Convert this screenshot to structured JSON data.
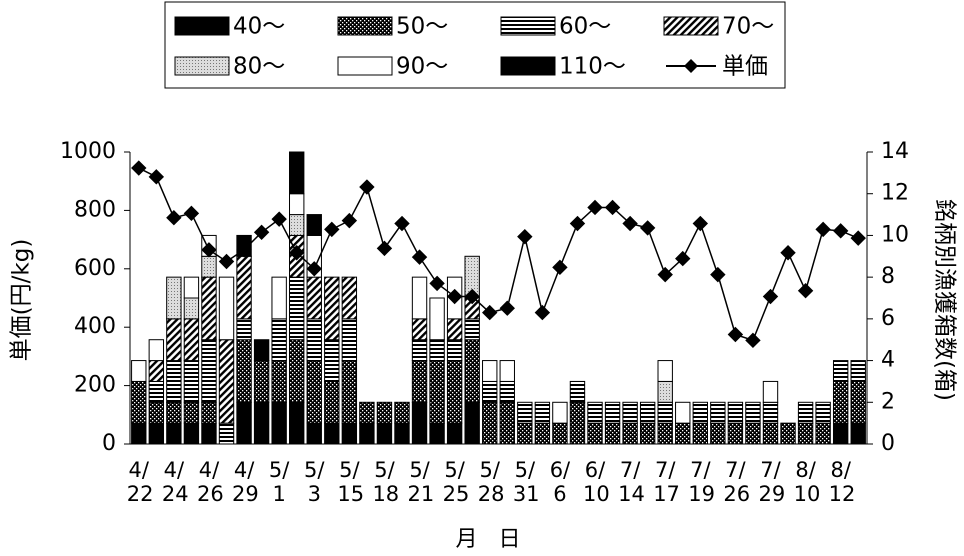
{
  "chart_data": {
    "type": "bar_line",
    "y_label": "単価(円/kg)",
    "y2_label": "銘柄別漁獲箱数(箱)",
    "x_label": "月 日",
    "categories": [
      "4/ 22",
      null,
      "4/ 24",
      null,
      "4/ 26",
      null,
      "4/ 29",
      null,
      "5/ 1",
      null,
      "5/ 3",
      null,
      "5/ 15",
      null,
      "5/ 18",
      null,
      "5/ 21",
      null,
      "5/ 25",
      null,
      "5/ 28",
      null,
      "5/ 31",
      null,
      "6/ 6",
      null,
      "6/ 10",
      null,
      "7/ 14",
      null,
      "7/ 17",
      null,
      "7/ 19",
      null,
      "7/ 26",
      null,
      "7/ 29",
      null,
      "8/ 10",
      null,
      "8/ 12",
      null
    ],
    "ylim": [
      0,
      1000
    ],
    "yticks": [
      0,
      200,
      400,
      600,
      800,
      1000
    ],
    "y2lim": [
      0,
      14
    ],
    "y2ticks": [
      0,
      2,
      4,
      6,
      8,
      10,
      12,
      14
    ],
    "series": [
      {
        "name": "40～",
        "color": "#000000",
        "axis": "y2",
        "values": [
          1,
          1,
          1,
          1,
          1,
          0,
          2,
          2,
          2,
          2,
          1,
          1,
          1,
          1,
          1,
          1,
          2,
          1,
          1,
          2,
          0,
          0,
          0,
          0,
          0,
          0,
          0,
          0,
          0,
          0,
          0,
          0,
          0,
          0,
          0,
          0,
          0,
          0,
          0,
          0,
          1,
          1
        ]
      },
      {
        "name": "50～",
        "color": "#333333",
        "axis": "y2",
        "values": [
          2,
          1,
          1,
          1,
          1,
          0,
          3,
          2,
          2,
          3,
          3,
          2,
          3,
          1,
          1,
          1,
          2,
          3,
          3,
          3,
          2,
          2,
          1,
          1,
          1,
          2,
          1,
          1,
          1,
          1,
          1,
          1,
          1,
          1,
          1,
          1,
          1,
          1,
          1,
          1,
          2,
          2
        ]
      },
      {
        "name": "60～",
        "color": "#555555",
        "axis": "y2",
        "values": [
          0,
          1,
          2,
          2,
          3,
          1,
          1,
          0,
          2,
          3,
          2,
          2,
          2,
          0,
          0,
          0,
          1,
          1,
          1,
          1,
          1,
          1,
          1,
          1,
          0,
          1,
          1,
          1,
          1,
          1,
          1,
          0,
          1,
          1,
          1,
          1,
          1,
          0,
          1,
          1,
          1,
          1
        ]
      },
      {
        "name": "70～",
        "color": "#777777",
        "axis": "y2",
        "values": [
          0,
          1,
          2,
          2,
          3,
          4,
          3,
          0,
          0,
          2,
          2,
          3,
          2,
          0,
          0,
          0,
          1,
          0,
          1,
          1,
          0,
          0,
          0,
          0,
          0,
          0,
          0,
          0,
          0,
          0,
          0,
          0,
          0,
          0,
          0,
          0,
          0,
          0,
          0,
          0,
          0,
          0
        ]
      },
      {
        "name": "80～",
        "color": "#bbbbbb",
        "axis": "y2",
        "values": [
          0,
          0,
          2,
          1,
          1,
          0,
          0,
          0,
          0,
          1,
          0,
          0,
          0,
          0,
          0,
          0,
          0,
          0,
          0,
          2,
          0,
          0,
          0,
          0,
          0,
          0,
          0,
          0,
          0,
          0,
          1,
          0,
          0,
          0,
          0,
          0,
          0,
          0,
          0,
          0,
          0,
          0
        ]
      },
      {
        "name": "90～",
        "color": "#ffffff",
        "axis": "y2",
        "values": [
          1,
          1,
          0,
          1,
          1,
          3,
          0,
          0,
          2,
          1,
          2,
          0,
          0,
          0,
          0,
          0,
          2,
          2,
          2,
          0,
          1,
          1,
          0,
          0,
          1,
          0,
          0,
          0,
          0,
          0,
          1,
          1,
          0,
          0,
          0,
          0,
          1,
          0,
          0,
          0,
          0,
          0
        ]
      },
      {
        "name": "110～",
        "color": "#111111",
        "axis": "y2",
        "values": [
          0,
          0,
          0,
          0,
          0,
          0,
          1,
          1,
          0,
          2,
          1,
          0,
          0,
          0,
          0,
          0,
          0,
          0,
          0,
          0,
          0,
          0,
          0,
          0,
          0,
          0,
          0,
          0,
          0,
          0,
          0,
          0,
          0,
          0,
          0,
          0,
          0,
          0,
          0,
          0,
          0,
          0
        ]
      },
      {
        "name": "単価",
        "color": "#000000",
        "axis": "y",
        "type": "line",
        "values": [
          945,
          915,
          775,
          790,
          665,
          625,
          665,
          725,
          770,
          655,
          600,
          735,
          765,
          880,
          670,
          755,
          640,
          550,
          505,
          505,
          450,
          465,
          710,
          450,
          605,
          755,
          810,
          810,
          755,
          740,
          580,
          635,
          755,
          580,
          375,
          355,
          505,
          655,
          525,
          735,
          730,
          705
        ]
      }
    ]
  }
}
